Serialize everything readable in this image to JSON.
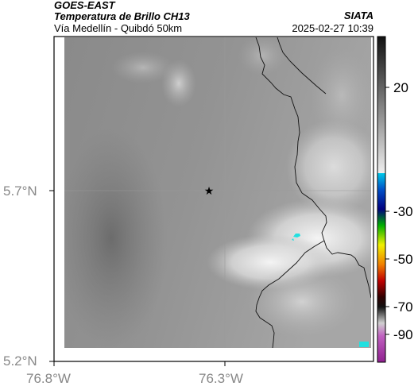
{
  "header": {
    "satellite": "GOES-EAST",
    "product": "Temperatura de Brillo CH13",
    "region": "Vía Medellín - Quibdó 50km",
    "organization": "SIATA",
    "datetime": "2025-02-27 10:39"
  },
  "axes": {
    "x_ticks": [
      "76.8°W",
      "76.3°W"
    ],
    "y_ticks": [
      "5.7°N",
      "5.2°N"
    ]
  },
  "colorbar": {
    "ticks": [
      "20",
      "-30",
      "-50",
      "-70",
      "-90"
    ]
  },
  "marker": {
    "symbol": "★",
    "name": "station-marker"
  },
  "colors": {
    "cloud_bright": "#f2f2f2",
    "cloud_dark": "#6e6e6e",
    "border_line": "#111111",
    "cold_cyan": "#22e0e0"
  }
}
